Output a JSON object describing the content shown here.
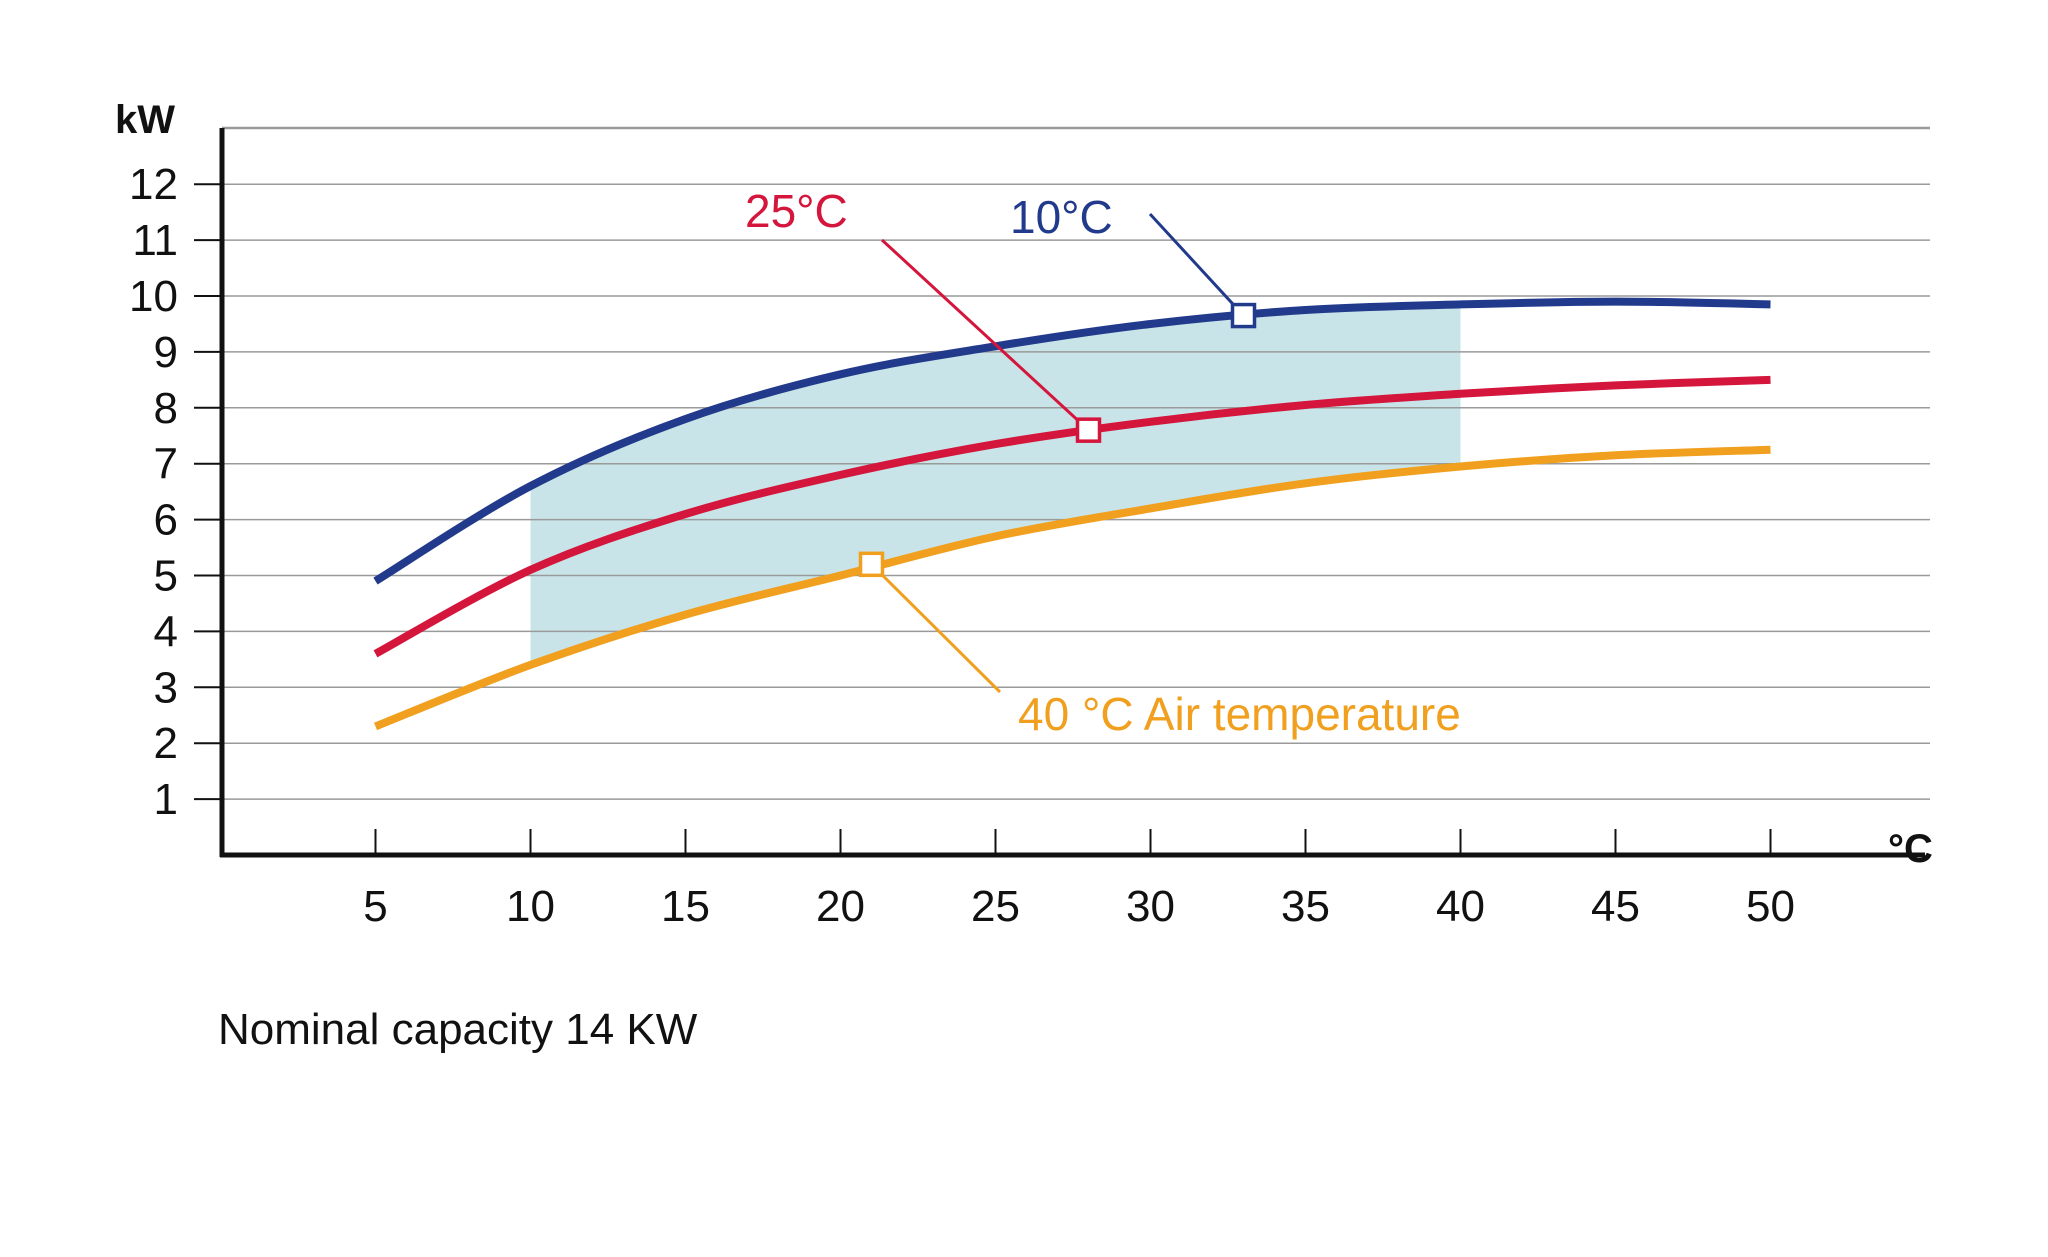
{
  "chart_data": {
    "type": "line",
    "title": "",
    "caption": "Nominal capacity 14 KW",
    "ylabel": "kW",
    "xlabel": "°C",
    "xlim": [
      0,
      55
    ],
    "ylim": [
      0,
      13
    ],
    "xticks": [
      5,
      10,
      15,
      20,
      25,
      30,
      35,
      40,
      45,
      50
    ],
    "yticks": [
      1,
      2,
      3,
      4,
      5,
      6,
      7,
      8,
      9,
      10,
      11,
      12
    ],
    "grid": true,
    "shaded_region": {
      "x_range": [
        10,
        40
      ],
      "between_series": [
        "10°C",
        "40 °C Air temperature"
      ],
      "color": "#c9e4e8"
    },
    "series": [
      {
        "name": "10°C",
        "color": "#223a8c",
        "x": [
          5,
          10,
          15,
          20,
          25,
          30,
          35,
          40,
          45,
          50
        ],
        "y": [
          4.9,
          6.6,
          7.8,
          8.6,
          9.1,
          9.5,
          9.75,
          9.85,
          9.9,
          9.85
        ],
        "marker": {
          "x": 33,
          "y": 9.65
        },
        "label_text": "10°C"
      },
      {
        "name": "25°C",
        "color": "#d4153c",
        "x": [
          5,
          10,
          15,
          20,
          25,
          30,
          35,
          40,
          45,
          50
        ],
        "y": [
          3.6,
          5.1,
          6.1,
          6.8,
          7.35,
          7.75,
          8.05,
          8.25,
          8.4,
          8.5
        ],
        "marker": {
          "x": 28,
          "y": 7.6
        },
        "label_text": "25°C"
      },
      {
        "name": "40 °C Air temperature",
        "color": "#f0a01e",
        "x": [
          5,
          10,
          15,
          20,
          25,
          30,
          35,
          40,
          45,
          50
        ],
        "y": [
          2.3,
          3.4,
          4.3,
          5.0,
          5.7,
          6.2,
          6.65,
          6.95,
          7.15,
          7.25
        ],
        "marker": {
          "x": 21,
          "y": 5.2
        },
        "label_text": "40 °C Air temperature"
      }
    ]
  }
}
